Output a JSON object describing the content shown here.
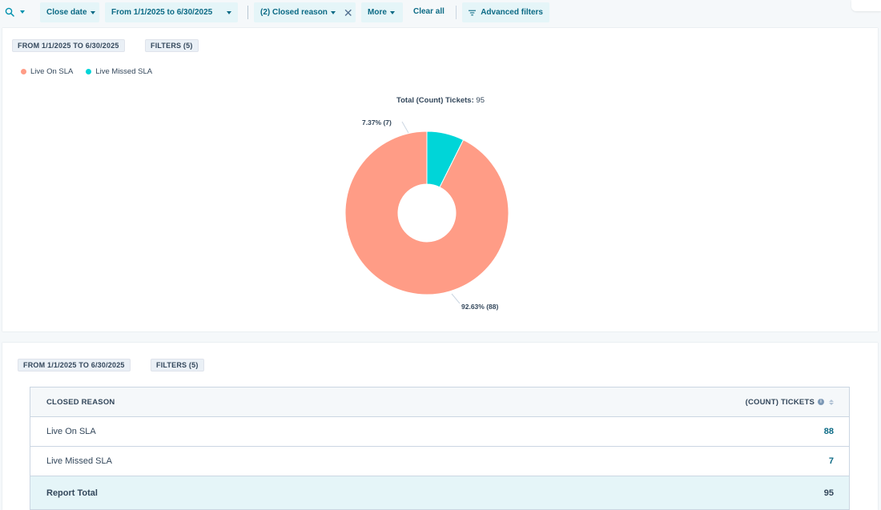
{
  "filterbar": {
    "close_date_label": "Close date",
    "date_range_label": "From 1/1/2025 to 6/30/2025",
    "closed_reason_label": "(2) Closed reason",
    "more_label": "More",
    "clear_all_label": "Clear all",
    "advanced_filters_label": "Advanced filters"
  },
  "chart_card": {
    "date_tag": "FROM 1/1/2025 TO 6/30/2025",
    "filters_tag": "FILTERS (5)",
    "legend": [
      {
        "label": "Live On SLA",
        "color": "#ff9c86"
      },
      {
        "label": "Live Missed SLA",
        "color": "#00d5d8"
      }
    ],
    "total_label": "Total (Count) Tickets:",
    "total_value": "95"
  },
  "chart_data": {
    "type": "pie",
    "donut": true,
    "total_label": "Total (Count) Tickets:",
    "total": 95,
    "slices": [
      {
        "name": "Live On SLA",
        "value": 88,
        "percent": 92.63,
        "color": "#ff9c86",
        "label": "92.63% (88)"
      },
      {
        "name": "Live Missed SLA",
        "value": 7,
        "percent": 7.37,
        "color": "#00d5d8",
        "label": "7.37% (7)"
      }
    ]
  },
  "table_card": {
    "date_tag": "FROM 1/1/2025 TO 6/30/2025",
    "filters_tag": "FILTERS (5)",
    "headers": {
      "reason": "CLOSED REASON",
      "count": "(COUNT) TICKETS"
    },
    "rows": [
      {
        "reason": "Live On SLA",
        "count": "88"
      },
      {
        "reason": "Live Missed SLA",
        "count": "7"
      }
    ],
    "total": {
      "label": "Report Total",
      "count": "95"
    }
  },
  "icons": {
    "search": "search-icon",
    "info": "info-icon",
    "sort": "sort-icon",
    "filter": "filter-lines-icon",
    "remove": "close-icon"
  }
}
